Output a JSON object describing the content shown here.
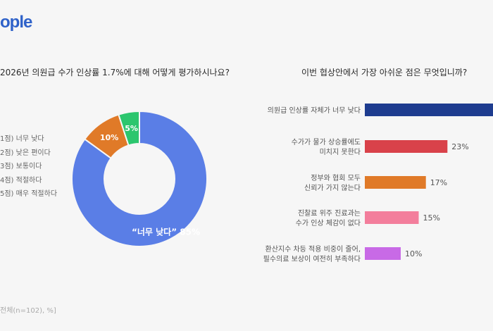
{
  "logo": {
    "text": "ople"
  },
  "left_question": "2026년 의원급 수가 인상률 1.7%에 대해 어떻게 평가하시나요?",
  "right_question": "이번 협상안에서 가장 아쉬운 점은 무엇입니까?",
  "footnote": "전체(n=102), %]",
  "colors": {
    "blue": "#5a7ee6",
    "orange": "#e07a28",
    "green": "#2cc66e",
    "navy": "#1e3c8f",
    "red": "#d9424a",
    "pink": "#f37e9c",
    "purple": "#c86ae6"
  },
  "chart_data": [
    {
      "type": "pie",
      "legend": [
        "1점) 너무 낮다",
        "2점) 낮은 편이다",
        "3점) 보통이다",
        "4점) 적절하다",
        "5점) 매우 적절하다"
      ],
      "slices": [
        {
          "label": "“너무 낮다” 85%",
          "value": 85,
          "color": "#5a7ee6"
        },
        {
          "label": "10%",
          "value": 10,
          "color": "#e07a28"
        },
        {
          "label": "5%",
          "value": 5,
          "color": "#2cc66e"
        }
      ]
    },
    {
      "type": "bar",
      "categories": [
        [
          "의원급 인상률 자체가 너무 낮다"
        ],
        [
          "수가가 물가 상승률에도",
          "미치지 못한다"
        ],
        [
          "정부와 협회 모두",
          "신뢰가 가지 않는다"
        ],
        [
          "진찰료 위주 진료과는",
          "수가 인상 체감이 없다"
        ],
        [
          "환산지수 차등 적용 비중이 줄어,",
          "필수의료 보상이 여전히 부족하다"
        ]
      ],
      "values": [
        null,
        23,
        17,
        15,
        10
      ],
      "value_labels": [
        "",
        "23%",
        "17%",
        "15%",
        "10%"
      ],
      "colors": [
        "#1e3c8f",
        "#d9424a",
        "#e07a28",
        "#f37e9c",
        "#c86ae6"
      ]
    }
  ]
}
